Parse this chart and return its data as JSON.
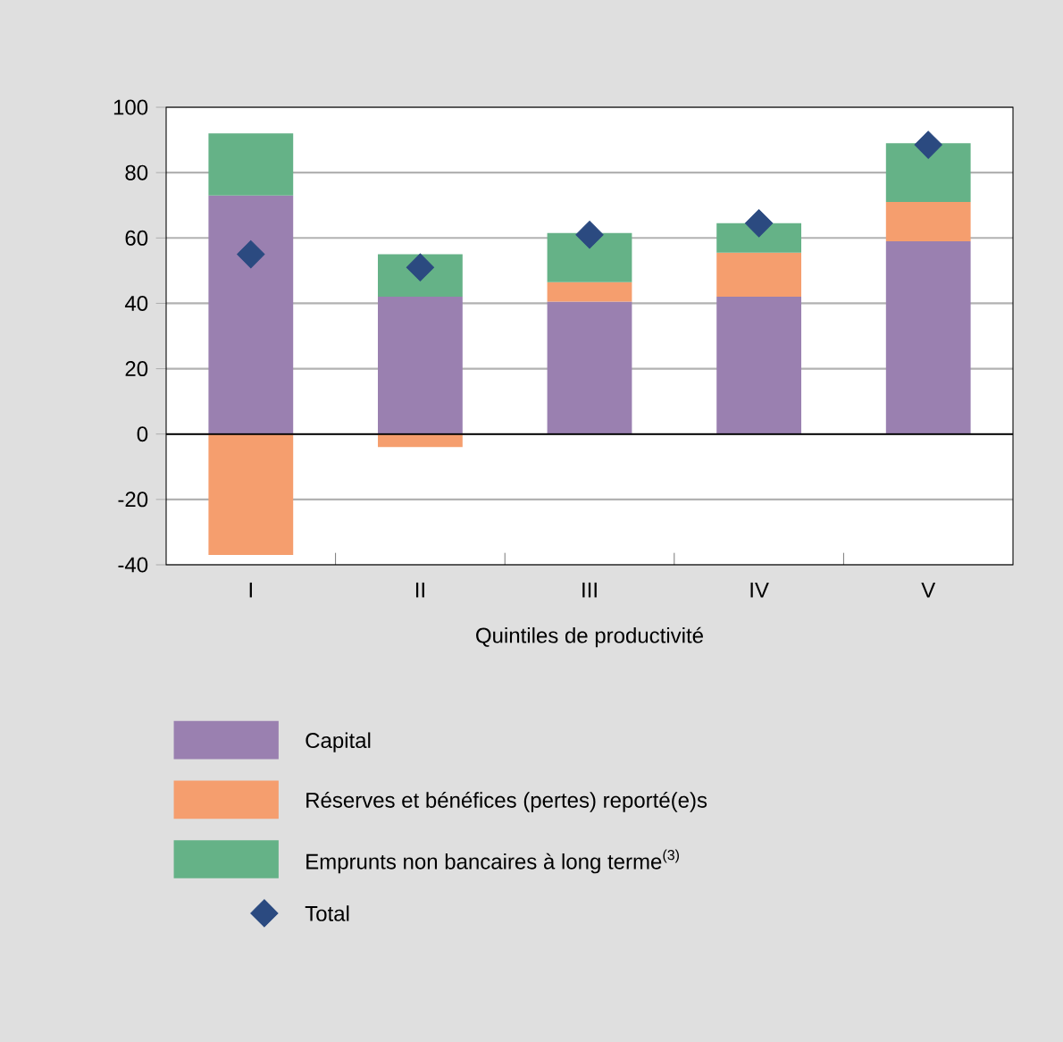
{
  "chart_data": {
    "type": "bar",
    "stacked": true,
    "xlabel": "Quintiles de productivité",
    "categories": [
      "I",
      "II",
      "III",
      "IV",
      "V"
    ],
    "series": [
      {
        "name": "Capital",
        "color": "#9a80b0",
        "values": [
          73,
          42,
          40.5,
          42,
          59
        ]
      },
      {
        "name": "Réserves et bénéfices (pertes) reporté(e)s",
        "color": "#f59e6e",
        "values": [
          -37,
          -4,
          6,
          13.5,
          12
        ]
      },
      {
        "name": "Emprunts non bancaires à long terme$^{(3)}$",
        "color": "#65b287",
        "values": [
          19,
          13,
          15,
          9,
          18
        ]
      },
      {
        "name": "Total",
        "type": "scatter",
        "marker": "diamond",
        "color": "#2b4a80",
        "values": [
          55,
          51,
          61,
          64.5,
          88.5
        ]
      }
    ],
    "ylim": [
      -40,
      100
    ],
    "yticks": [
      -40,
      -20,
      0,
      20,
      40,
      60,
      80,
      100
    ],
    "grid": "y",
    "legend": "bottom",
    "ref_lines": [
      {
        "axis": "y",
        "value": 0,
        "color": "#000000"
      }
    ]
  }
}
